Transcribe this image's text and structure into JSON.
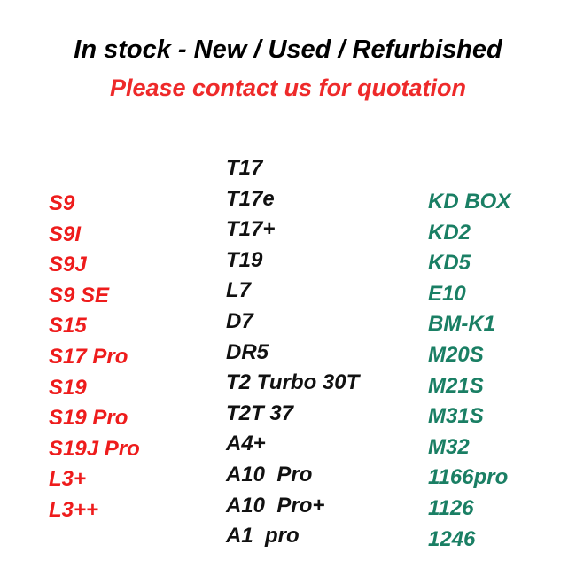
{
  "header": {
    "title": "In stock - New / Used / Refurbished",
    "subtitle": "Please contact us for quotation"
  },
  "colors": {
    "title": "#000000",
    "subtitle": "#ee2a2a",
    "left_column": "#ee1c1c",
    "middle_column": "#111111",
    "right_column": "#1a7f64"
  },
  "columns": {
    "left": [
      "S9",
      "S9I",
      "S9J",
      "S9 SE",
      "S15",
      "S17 Pro",
      "S19",
      "S19 Pro",
      "S19J Pro",
      "L3+",
      "L3++"
    ],
    "middle": [
      "T17",
      "T17e",
      "T17+",
      "T19",
      "L7",
      "D7",
      "DR5",
      "T2 Turbo 30T",
      "T2T 37",
      "A4+",
      "A10  Pro",
      "A10  Pro+",
      "A1  pro"
    ],
    "right": [
      "KD BOX",
      "KD2",
      "KD5",
      "E10",
      "BM-K1",
      "M20S",
      "M21S",
      "M31S",
      "M32",
      "1166pro",
      "1126",
      "1246"
    ]
  }
}
